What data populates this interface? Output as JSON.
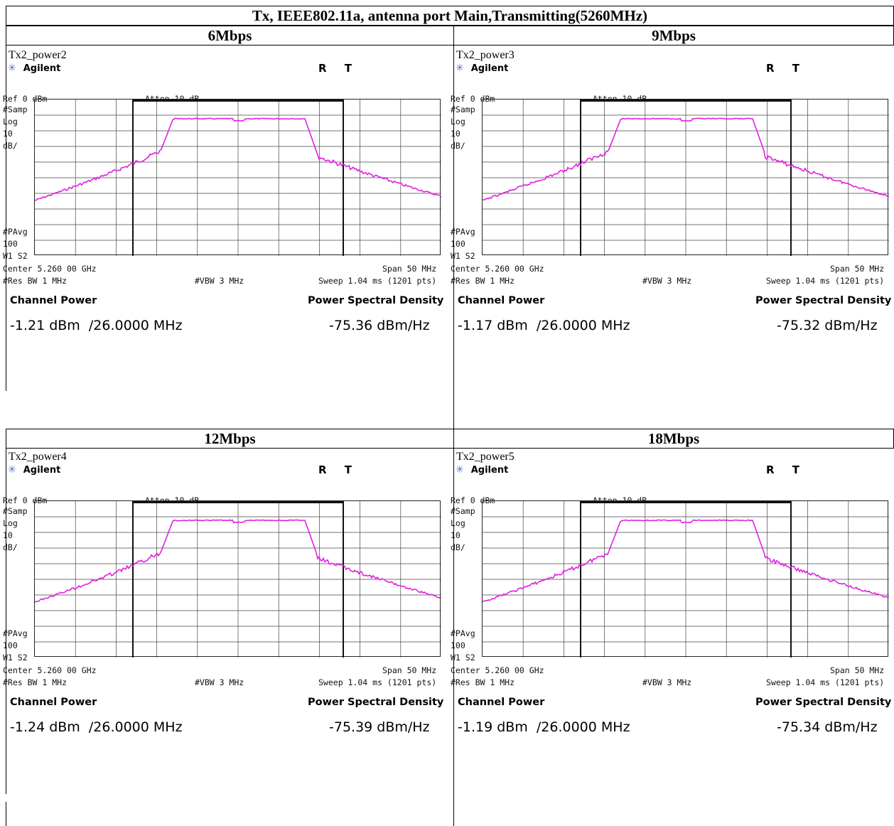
{
  "header": {
    "title": "Tx, IEEE802.11a, antenna port Main,Transmitting(5260MHz)"
  },
  "colors": {
    "trace": "#e020e0",
    "grid": "#444444",
    "brand_star": "#5570c8"
  },
  "panels": [
    {
      "rate": "6Mbps",
      "label": "Tx2_power2",
      "brand": "Agilent",
      "rt": "R T",
      "ref": "Ref 0 dBm",
      "atten": "Atten 10 dB",
      "samp": "#Samp",
      "log": "Log",
      "ten": "10",
      "dbdiv": "dB/",
      "pavg": "#PAvg",
      "hundred": "100",
      "w1s2": "W1  S2",
      "center": "Center 5.260 00 GHz",
      "span": "Span 50 MHz",
      "resbw": "#Res BW 1 MHz",
      "vbw": "#VBW 3 MHz",
      "sweep": "Sweep 1.04 ms (1201 pts)",
      "cp_label": "Channel Power",
      "psd_label": "Power Spectral Density",
      "cp_value": "-1.21 dBm  /26.0000 MHz",
      "psd_value": "-75.36 dBm/Hz"
    },
    {
      "rate": "9Mbps",
      "label": "Tx2_power3",
      "brand": "Agilent",
      "rt": "R T",
      "ref": "Ref 0 dBm",
      "atten": "Atten 10 dB",
      "samp": "#Samp",
      "log": "Log",
      "ten": "10",
      "dbdiv": "dB/",
      "pavg": "#PAvg",
      "hundred": "100",
      "w1s2": "W1  S2",
      "center": "Center 5.260 00 GHz",
      "span": "Span 50 MHz",
      "resbw": "#Res BW 1 MHz",
      "vbw": "#VBW 3 MHz",
      "sweep": "Sweep 1.04 ms (1201 pts)",
      "cp_label": "Channel Power",
      "psd_label": "Power Spectral Density",
      "cp_value": "-1.17 dBm  /26.0000 MHz",
      "psd_value": "-75.32 dBm/Hz"
    },
    {
      "rate": "12Mbps",
      "label": "Tx2_power4",
      "brand": "Agilent",
      "rt": "R T",
      "ref": "Ref 0 dBm",
      "atten": "Atten 10 dB",
      "samp": "#Samp",
      "log": "Log",
      "ten": "10",
      "dbdiv": "dB/",
      "pavg": "#PAvg",
      "hundred": "100",
      "w1s2": "W1  S2",
      "center": "Center 5.260 00 GHz",
      "span": "Span 50 MHz",
      "resbw": "#Res BW 1 MHz",
      "vbw": "#VBW 3 MHz",
      "sweep": "Sweep 1.04 ms (1201 pts)",
      "cp_label": "Channel Power",
      "psd_label": "Power Spectral Density",
      "cp_value": "-1.24 dBm  /26.0000 MHz",
      "psd_value": "-75.39 dBm/Hz"
    },
    {
      "rate": "18Mbps",
      "label": "Tx2_power5",
      "brand": "Agilent",
      "rt": "R T",
      "ref": "Ref 0 dBm",
      "atten": "Atten 10 dB",
      "samp": "#Samp",
      "log": "Log",
      "ten": "10",
      "dbdiv": "dB/",
      "pavg": "#PAvg",
      "hundred": "100",
      "w1s2": "W1  S2",
      "center": "Center 5.260 00 GHz",
      "span": "Span 50 MHz",
      "resbw": "#Res BW 1 MHz",
      "vbw": "#VBW 3 MHz",
      "sweep": "Sweep 1.04 ms (1201 pts)",
      "cp_label": "Channel Power",
      "psd_label": "Power Spectral Density",
      "cp_value": "-1.19 dBm  /26.0000 MHz",
      "psd_value": "-75.34 dBm/Hz"
    }
  ]
}
